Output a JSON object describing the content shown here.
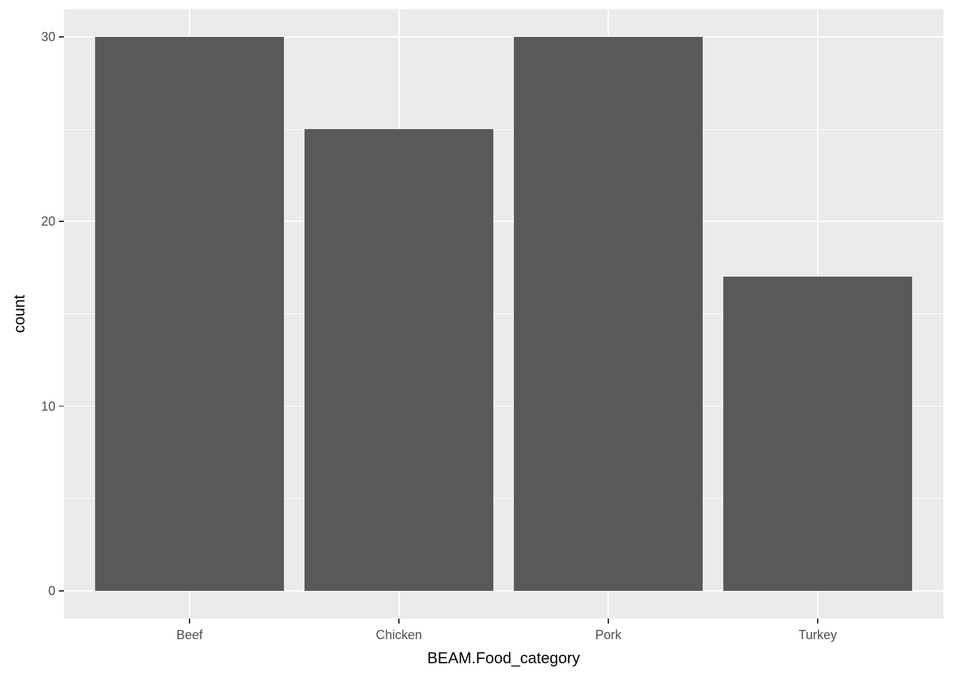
{
  "chart_data": {
    "type": "bar",
    "categories": [
      "Beef",
      "Chicken",
      "Pork",
      "Turkey"
    ],
    "values": [
      30,
      25,
      30,
      17
    ],
    "title": "",
    "xlabel": "BEAM.Food_category",
    "ylabel": "count",
    "ylim": [
      0,
      30
    ],
    "y_major_ticks": [
      0,
      10,
      20,
      30
    ],
    "y_minor_ticks": [
      5,
      15,
      25
    ],
    "grid": true,
    "legend": false,
    "bar_width_fraction": 0.9,
    "theme": {
      "page_background": "#FFFFFF",
      "panel_background": "#EBEBEB",
      "grid_color": "#FFFFFF",
      "bar_fill": "#595959",
      "tick_label_color": "#4D4D4D",
      "axis_title_color": "#000000",
      "tick_mark_color": "#333333"
    }
  }
}
